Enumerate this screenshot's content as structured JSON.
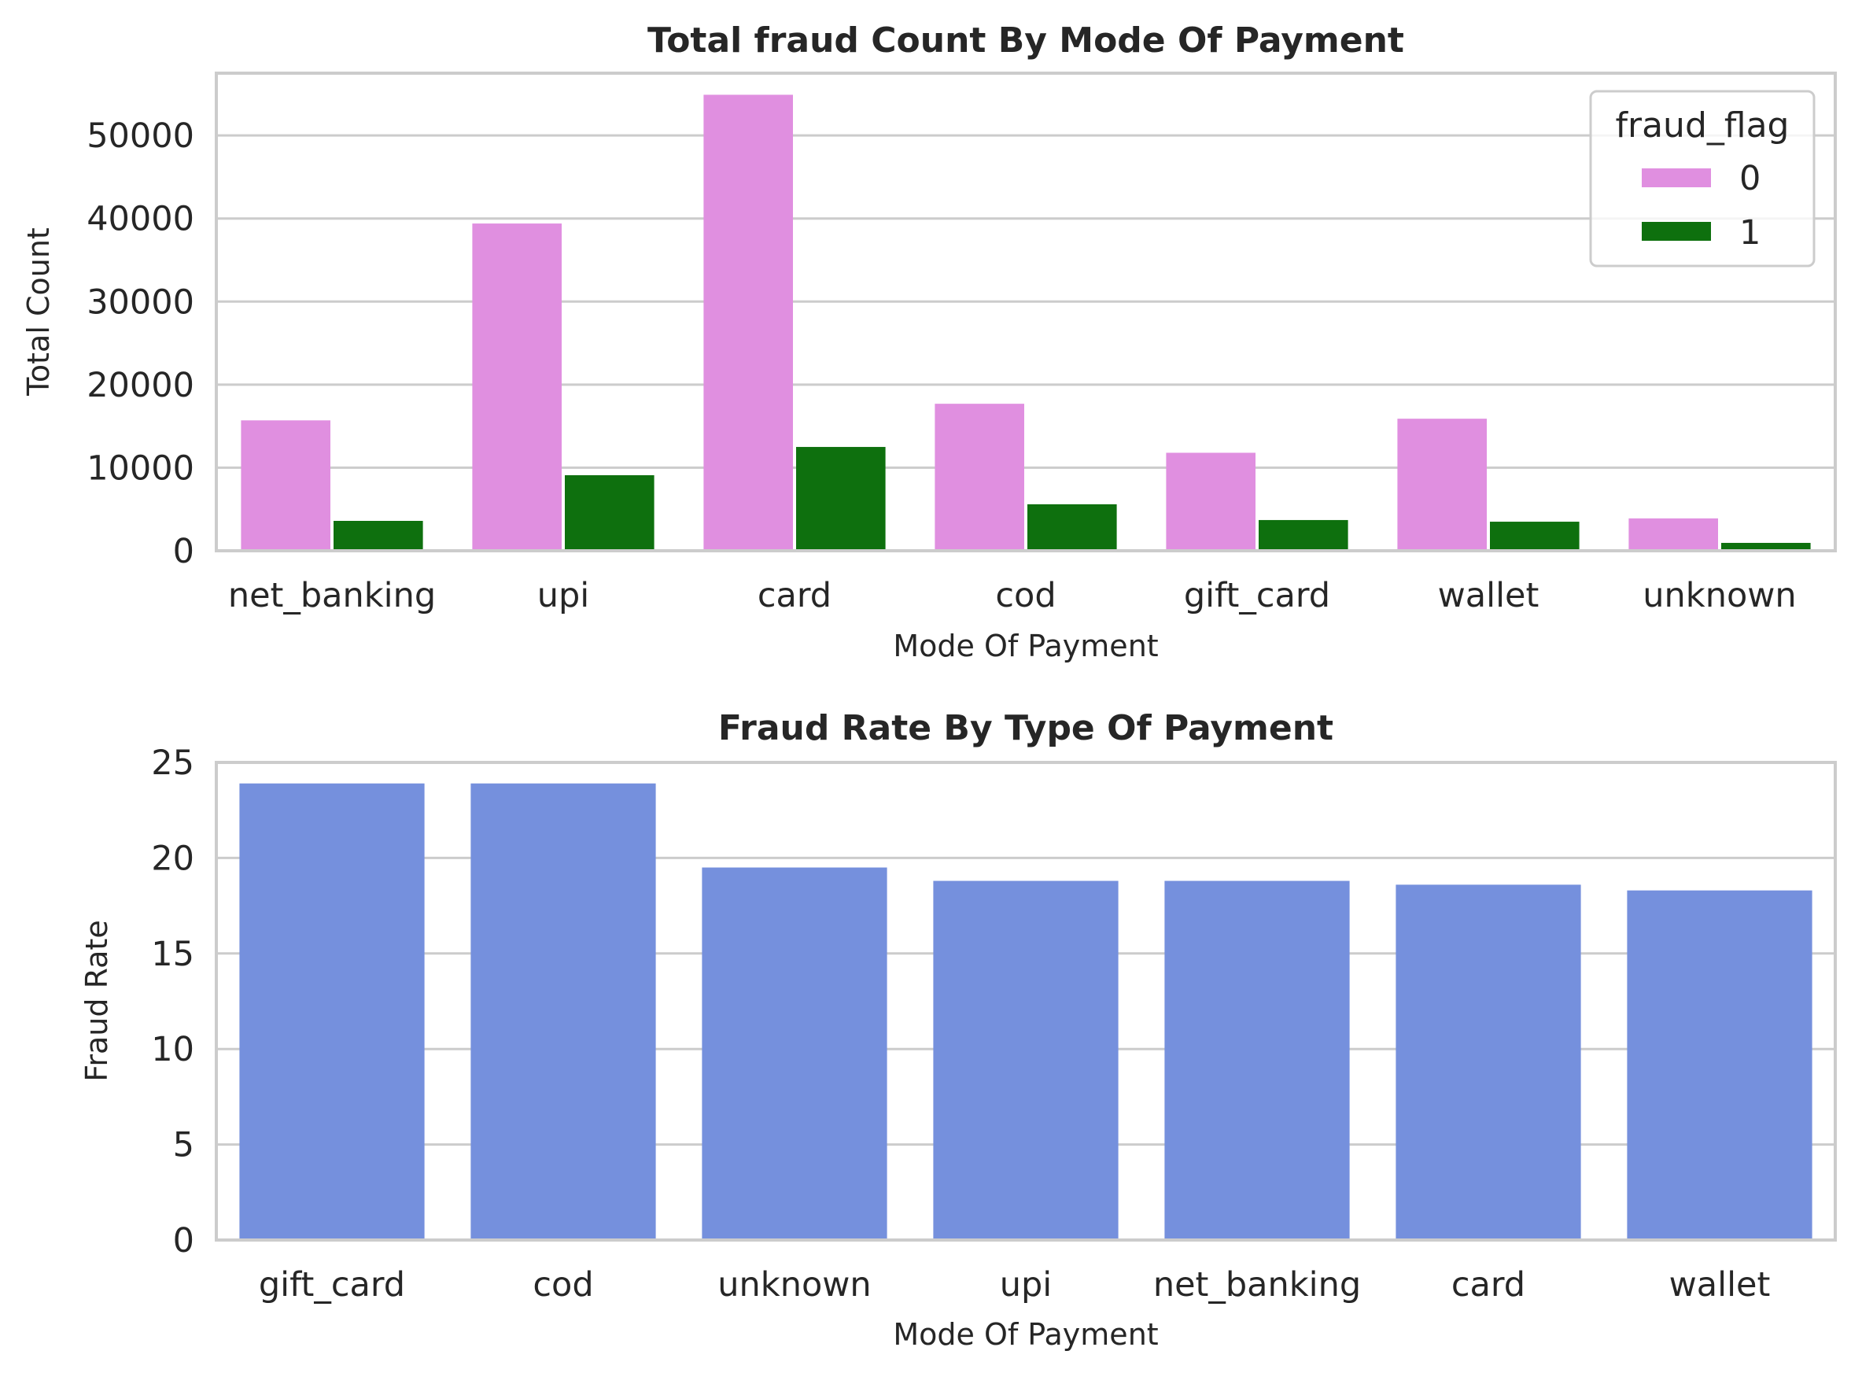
{
  "chart_data": [
    {
      "type": "bar",
      "title": "Total fraud Count By Mode Of Payment",
      "xlabel": "Mode Of Payment",
      "ylabel": "Total Count",
      "categories": [
        "net_banking",
        "upi",
        "card",
        "cod",
        "gift_card",
        "wallet",
        "unknown"
      ],
      "series": [
        {
          "name": "0",
          "color": "#e08fe0",
          "values": [
            15700,
            39400,
            54900,
            17700,
            11800,
            15900,
            3900
          ]
        },
        {
          "name": "1",
          "color": "#0e700e",
          "values": [
            3600,
            9100,
            12500,
            5600,
            3700,
            3500,
            950
          ]
        }
      ],
      "ylim": [
        0,
        57500
      ],
      "yticks": [
        0,
        10000,
        20000,
        30000,
        40000,
        50000
      ],
      "legend": {
        "title": "fraud_flag",
        "position": "top-right"
      },
      "grid": true
    },
    {
      "type": "bar",
      "title": "Fraud Rate By Type Of Payment",
      "xlabel": "Mode Of Payment",
      "ylabel": "Fraud Rate",
      "categories": [
        "gift_card",
        "cod",
        "unknown",
        "upi",
        "net_banking",
        "card",
        "wallet"
      ],
      "values": [
        23.9,
        23.9,
        19.5,
        18.8,
        18.8,
        18.6,
        18.3
      ],
      "color": "#7590dd",
      "ylim": [
        0,
        25
      ],
      "yticks": [
        0,
        5,
        10,
        15,
        20,
        25
      ],
      "grid": true
    }
  ]
}
